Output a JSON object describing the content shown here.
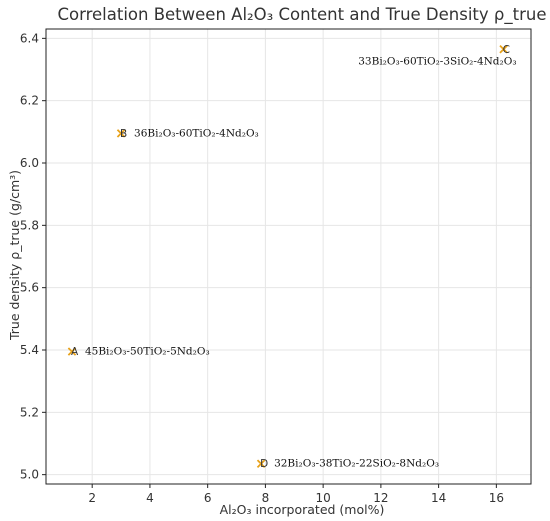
{
  "chart_data": {
    "type": "scatter",
    "title": "Correlation Between Al₂O₃ Content and True Density ρ_true",
    "xlabel": "Al₂O₃ incorporated (mol%)",
    "ylabel": "True density ρ_true (g/cm³)",
    "xlim": [
      0.4,
      17.2
    ],
    "ylim": [
      4.97,
      6.43
    ],
    "xticks": [
      2,
      4,
      6,
      8,
      10,
      12,
      14,
      16
    ],
    "yticks": [
      5.0,
      5.2,
      5.4,
      5.6,
      5.8,
      6.0,
      6.2,
      6.4
    ],
    "xtick_labels": [
      "2",
      "4",
      "6",
      "8",
      "10",
      "12",
      "14",
      "16"
    ],
    "ytick_labels": [
      "5.0",
      "5.2",
      "5.4",
      "5.6",
      "5.8",
      "6.0",
      "6.2",
      "6.4"
    ],
    "grid": true,
    "marker_color": "#e8a21a",
    "points": [
      {
        "label": "A",
        "annotation": "45Bi₂O₃-50TiO₂-5Nd₂O₃",
        "x": 1.3,
        "y": 5.395,
        "anno_side": "right"
      },
      {
        "label": "B",
        "annotation": "36Bi₂O₃-60TiO₂-4Nd₂O₃",
        "x": 3.0,
        "y": 6.095,
        "anno_side": "right"
      },
      {
        "label": "C",
        "annotation": "33Bi₂O₃-60TiO₂-3SiO₂-4Nd₂O₃",
        "x": 16.25,
        "y": 6.365,
        "anno_side": "below-left"
      },
      {
        "label": "D",
        "annotation": "32Bi₂O₃-38TiO₂-22SiO₂-8Nd₂O₃",
        "x": 7.85,
        "y": 5.035,
        "anno_side": "right"
      }
    ]
  }
}
